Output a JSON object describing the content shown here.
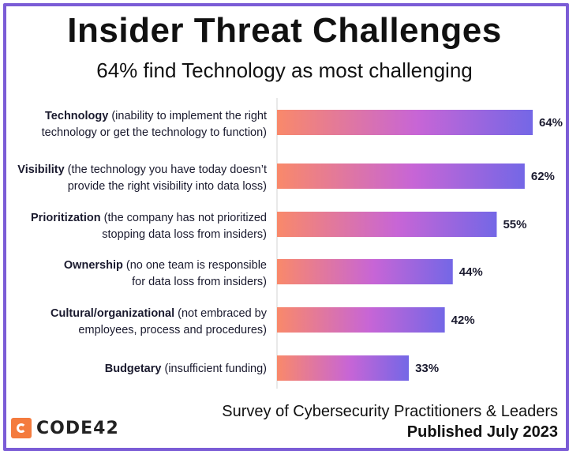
{
  "title": "Insider Threat Challenges",
  "subtitle": "64% find Technology as most challenging",
  "footer": {
    "source": "Survey of Cybersecurity Practitioners & Leaders",
    "published": "Published July 2023"
  },
  "logo": {
    "text": "CODE42",
    "icon": "code42-logo-icon",
    "color": "#f47b3e"
  },
  "colors": {
    "border": "#7b5cd6",
    "bar_start": "#f9896a",
    "bar_mid": "#c765d6",
    "bar_end": "#7467e6"
  },
  "chart_data": {
    "type": "bar",
    "orientation": "horizontal",
    "title": "Insider Threat Challenges",
    "subtitle": "64% find Technology as most challenging",
    "value_suffix": "%",
    "xlim": [
      0,
      64
    ],
    "categories": [
      {
        "name": "Technology",
        "detail_line1": "(inability to implement the right",
        "detail_line2": "technology or get the technology to function)"
      },
      {
        "name": "Visibility",
        "detail_line1": "(the technology you have today doesn’t",
        "detail_line2": "provide the right visibility into data loss)"
      },
      {
        "name": "Prioritization",
        "detail_line1": "(the company has not prioritized",
        "detail_line2": "stopping data loss from insiders)"
      },
      {
        "name": "Ownership",
        "detail_line1": "(no one team is responsible",
        "detail_line2": "for data loss from insiders)"
      },
      {
        "name": "Cultural/organizational",
        "detail_line1": "(not embraced by",
        "detail_line2": "employees, process and procedures)"
      },
      {
        "name": "Budgetary",
        "detail_line1": "(insufficient funding)",
        "detail_line2": ""
      }
    ],
    "values": [
      64,
      62,
      55,
      44,
      42,
      33
    ]
  }
}
